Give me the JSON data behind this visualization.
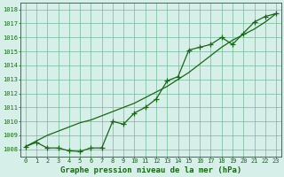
{
  "title": "Graphe pression niveau de la mer (hPa)",
  "x_values": [
    0,
    1,
    2,
    3,
    4,
    5,
    6,
    7,
    8,
    9,
    10,
    11,
    12,
    13,
    14,
    15,
    16,
    17,
    18,
    19,
    20,
    21,
    22,
    23
  ],
  "line_data": [
    1008.2,
    1008.5,
    1008.1,
    1008.1,
    1007.9,
    1007.85,
    1008.1,
    1008.1,
    1010.0,
    1009.8,
    1010.6,
    1011.0,
    1011.6,
    1012.9,
    1013.2,
    1015.1,
    1015.3,
    1015.5,
    1016.0,
    1015.5,
    1016.3,
    1017.1,
    1017.5,
    1017.7
  ],
  "trend_data": [
    1008.2,
    1008.6,
    1009.0,
    1009.3,
    1009.6,
    1009.9,
    1010.1,
    1010.4,
    1010.7,
    1011.0,
    1011.3,
    1011.7,
    1012.1,
    1012.5,
    1013.0,
    1013.5,
    1014.1,
    1014.7,
    1015.3,
    1015.8,
    1016.2,
    1016.6,
    1017.1,
    1017.7
  ],
  "ylim": [
    1007.5,
    1018.5
  ],
  "yticks": [
    1008,
    1009,
    1010,
    1011,
    1012,
    1013,
    1014,
    1015,
    1016,
    1017,
    1018
  ],
  "xlim": [
    -0.5,
    23.5
  ],
  "xticks": [
    0,
    1,
    2,
    3,
    4,
    5,
    6,
    7,
    8,
    9,
    10,
    11,
    12,
    13,
    14,
    15,
    16,
    17,
    18,
    19,
    20,
    21,
    22,
    23
  ],
  "line_color": "#1a6618",
  "bg_color": "#d6efe8",
  "grid_color": "#7ab89a",
  "title_color": "#1a6618",
  "marker": "+",
  "marker_size": 4,
  "line_width": 0.9,
  "title_fontsize": 6.5,
  "tick_fontsize": 5.0
}
